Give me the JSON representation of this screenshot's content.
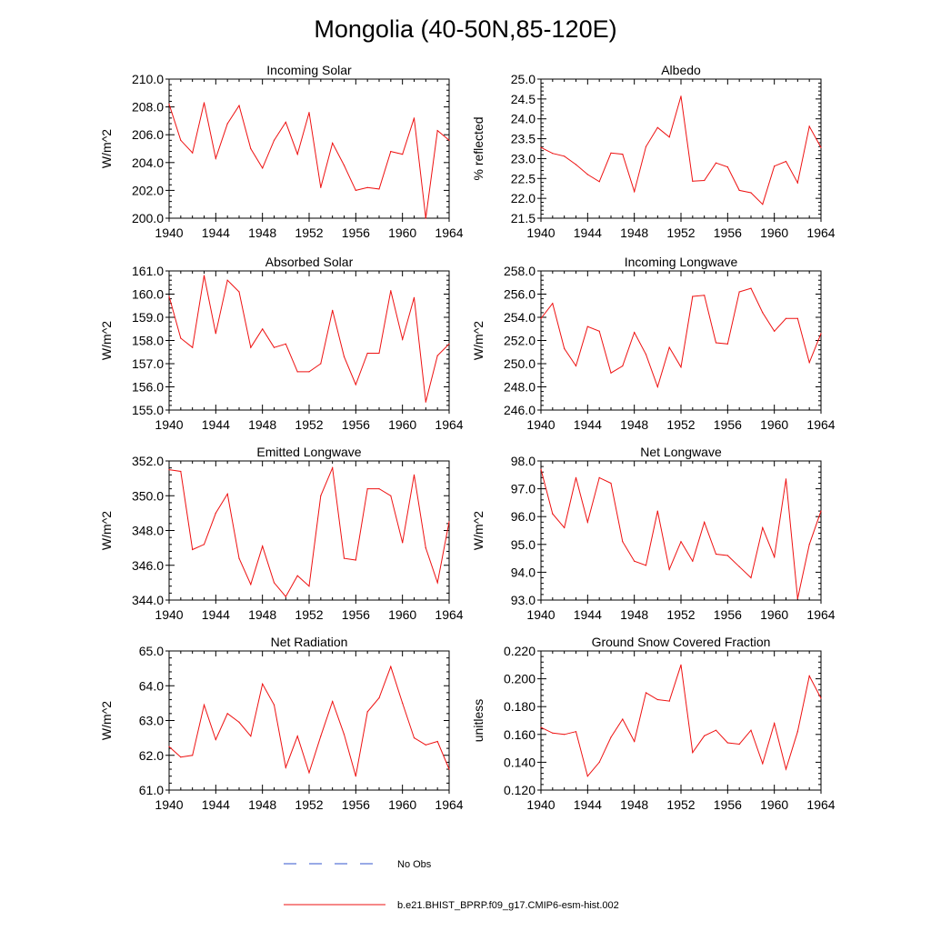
{
  "title": "Mongolia (40-50N,85-120E)",
  "legend": {
    "no_obs_label": "No Obs",
    "no_obs_color": "#3355cc",
    "model_label": "b.e21.BHIST_BPRP.f09_g17.CMIP6-esm-hist.002",
    "model_color": "#ee1111"
  },
  "chart_data": [
    {
      "type": "line",
      "title": "Incoming Solar",
      "xlabel": "",
      "ylabel": "W/m^2",
      "xlim": [
        1940,
        1964
      ],
      "ylim": [
        200.0,
        210.0
      ],
      "ytick_step": 2.0,
      "ydecimals": 1,
      "xticks": [
        1940,
        1944,
        1948,
        1952,
        1956,
        1960,
        1964
      ],
      "x": [
        1940,
        1941,
        1942,
        1943,
        1944,
        1945,
        1946,
        1947,
        1948,
        1949,
        1950,
        1951,
        1952,
        1953,
        1954,
        1955,
        1956,
        1957,
        1958,
        1959,
        1960,
        1961,
        1962,
        1963,
        1964
      ],
      "series": [
        {
          "name": "b.e21.BHIST_BPRP.f09_g17.CMIP6-esm-hist.002",
          "values": [
            208.2,
            205.6,
            204.7,
            208.3,
            204.3,
            206.8,
            208.1,
            205.0,
            203.6,
            205.6,
            206.9,
            204.6,
            207.6,
            202.2,
            205.4,
            203.8,
            202.0,
            202.2,
            202.1,
            204.8,
            204.6,
            207.2,
            200.0,
            206.3,
            205.6
          ]
        }
      ]
    },
    {
      "type": "line",
      "title": "Albedo",
      "xlabel": "",
      "ylabel": "% reflected",
      "xlim": [
        1940,
        1964
      ],
      "ylim": [
        21.5,
        25.0
      ],
      "ytick_step": 0.5,
      "ydecimals": 1,
      "xticks": [
        1940,
        1944,
        1948,
        1952,
        1956,
        1960,
        1964
      ],
      "x": [
        1940,
        1941,
        1942,
        1943,
        1944,
        1945,
        1946,
        1947,
        1948,
        1949,
        1950,
        1951,
        1952,
        1953,
        1954,
        1955,
        1956,
        1957,
        1958,
        1959,
        1960,
        1961,
        1962,
        1963,
        1964
      ],
      "series": [
        {
          "name": "b.e21.BHIST_BPRP.f09_g17.CMIP6-esm-hist.002",
          "values": [
            23.28,
            23.13,
            23.06,
            22.85,
            22.6,
            22.42,
            23.14,
            23.11,
            22.17,
            23.3,
            23.78,
            23.54,
            24.57,
            22.43,
            22.45,
            22.89,
            22.79,
            22.2,
            22.14,
            21.85,
            22.81,
            22.93,
            22.39,
            23.81,
            23.28
          ]
        }
      ]
    },
    {
      "type": "line",
      "title": "Absorbed Solar",
      "xlabel": "",
      "ylabel": "W/m^2",
      "xlim": [
        1940,
        1964
      ],
      "ylim": [
        155.0,
        161.0
      ],
      "ytick_step": 1.0,
      "ydecimals": 1,
      "xticks": [
        1940,
        1944,
        1948,
        1952,
        1956,
        1960,
        1964
      ],
      "x": [
        1940,
        1941,
        1942,
        1943,
        1944,
        1945,
        1946,
        1947,
        1948,
        1949,
        1950,
        1951,
        1952,
        1953,
        1954,
        1955,
        1956,
        1957,
        1958,
        1959,
        1960,
        1961,
        1962,
        1963,
        1964
      ],
      "series": [
        {
          "name": "b.e21.BHIST_BPRP.f09_g17.CMIP6-esm-hist.002",
          "values": [
            159.9,
            158.1,
            157.7,
            160.8,
            158.3,
            160.6,
            160.1,
            157.7,
            158.5,
            157.7,
            157.85,
            156.65,
            156.65,
            157.0,
            159.3,
            157.3,
            156.1,
            157.45,
            157.45,
            160.15,
            158.05,
            159.85,
            155.35,
            157.35,
            157.85
          ]
        }
      ]
    },
    {
      "type": "line",
      "title": "Incoming Longwave",
      "xlabel": "",
      "ylabel": "W/m^2",
      "xlim": [
        1940,
        1964
      ],
      "ylim": [
        246.0,
        258.0
      ],
      "ytick_step": 2.0,
      "ydecimals": 1,
      "xticks": [
        1940,
        1944,
        1948,
        1952,
        1956,
        1960,
        1964
      ],
      "x": [
        1940,
        1941,
        1942,
        1943,
        1944,
        1945,
        1946,
        1947,
        1948,
        1949,
        1950,
        1951,
        1952,
        1953,
        1954,
        1955,
        1956,
        1957,
        1958,
        1959,
        1960,
        1961,
        1962,
        1963,
        1964
      ],
      "series": [
        {
          "name": "b.e21.BHIST_BPRP.f09_g17.CMIP6-esm-hist.002",
          "values": [
            253.9,
            255.2,
            251.3,
            249.8,
            253.2,
            252.8,
            249.2,
            249.8,
            252.7,
            250.8,
            248.0,
            251.4,
            249.7,
            255.8,
            255.9,
            251.8,
            251.7,
            256.2,
            256.5,
            254.4,
            252.8,
            253.9,
            253.9,
            250.1,
            252.6
          ]
        }
      ]
    },
    {
      "type": "line",
      "title": "Emitted Longwave",
      "xlabel": "",
      "ylabel": "W/m^2",
      "xlim": [
        1940,
        1964
      ],
      "ylim": [
        344.0,
        352.0
      ],
      "ytick_step": 2.0,
      "ydecimals": 1,
      "xticks": [
        1940,
        1944,
        1948,
        1952,
        1956,
        1960,
        1964
      ],
      "x": [
        1940,
        1941,
        1942,
        1943,
        1944,
        1945,
        1946,
        1947,
        1948,
        1949,
        1950,
        1951,
        1952,
        1953,
        1954,
        1955,
        1956,
        1957,
        1958,
        1959,
        1960,
        1961,
        1962,
        1963,
        1964
      ],
      "series": [
        {
          "name": "b.e21.BHIST_BPRP.f09_g17.CMIP6-esm-hist.002",
          "values": [
            351.5,
            351.4,
            346.9,
            347.2,
            349.0,
            350.1,
            346.4,
            344.9,
            347.1,
            345.0,
            344.2,
            345.4,
            344.8,
            350.0,
            351.6,
            346.4,
            346.3,
            350.4,
            350.4,
            350.0,
            347.3,
            351.2,
            347.0,
            345.0,
            348.5
          ]
        }
      ]
    },
    {
      "type": "line",
      "title": "Net Longwave",
      "xlabel": "",
      "ylabel": "W/m^2",
      "xlim": [
        1940,
        1964
      ],
      "ylim": [
        93.0,
        98.0
      ],
      "ytick_step": 1.0,
      "ydecimals": 1,
      "xticks": [
        1940,
        1944,
        1948,
        1952,
        1956,
        1960,
        1964
      ],
      "x": [
        1940,
        1941,
        1942,
        1943,
        1944,
        1945,
        1946,
        1947,
        1948,
        1949,
        1950,
        1951,
        1952,
        1953,
        1954,
        1955,
        1956,
        1957,
        1958,
        1959,
        1960,
        1961,
        1962,
        1963,
        1964
      ],
      "series": [
        {
          "name": "b.e21.BHIST_BPRP.f09_g17.CMIP6-esm-hist.002",
          "values": [
            97.7,
            96.1,
            95.6,
            97.4,
            95.8,
            97.4,
            97.2,
            95.1,
            94.4,
            94.25,
            96.2,
            94.1,
            95.1,
            94.4,
            95.8,
            94.65,
            94.6,
            94.2,
            93.8,
            95.6,
            94.55,
            97.35,
            93.05,
            95.0,
            96.2
          ]
        }
      ]
    },
    {
      "type": "line",
      "title": "Net Radiation",
      "xlabel": "",
      "ylabel": "W/m^2",
      "xlim": [
        1940,
        1964
      ],
      "ylim": [
        61.0,
        65.0
      ],
      "ytick_step": 1.0,
      "ydecimals": 1,
      "xticks": [
        1940,
        1944,
        1948,
        1952,
        1956,
        1960,
        1964
      ],
      "x": [
        1940,
        1941,
        1942,
        1943,
        1944,
        1945,
        1946,
        1947,
        1948,
        1949,
        1950,
        1951,
        1952,
        1953,
        1954,
        1955,
        1956,
        1957,
        1958,
        1959,
        1960,
        1961,
        1962,
        1963,
        1964
      ],
      "series": [
        {
          "name": "b.e21.BHIST_BPRP.f09_g17.CMIP6-esm-hist.002",
          "values": [
            62.25,
            61.95,
            62.0,
            63.45,
            62.45,
            63.2,
            62.95,
            62.55,
            64.05,
            63.45,
            61.65,
            62.55,
            61.5,
            62.55,
            63.55,
            62.6,
            61.4,
            63.25,
            63.65,
            64.55,
            63.5,
            62.5,
            62.3,
            62.4,
            61.6
          ]
        }
      ]
    },
    {
      "type": "line",
      "title": "Ground Snow Covered Fraction",
      "xlabel": "",
      "ylabel": "unitless",
      "xlim": [
        1940,
        1964
      ],
      "ylim": [
        0.12,
        0.22
      ],
      "ytick_step": 0.02,
      "ydecimals": 3,
      "xticks": [
        1940,
        1944,
        1948,
        1952,
        1956,
        1960,
        1964
      ],
      "x": [
        1940,
        1941,
        1942,
        1943,
        1944,
        1945,
        1946,
        1947,
        1948,
        1949,
        1950,
        1951,
        1952,
        1953,
        1954,
        1955,
        1956,
        1957,
        1958,
        1959,
        1960,
        1961,
        1962,
        1963,
        1964
      ],
      "series": [
        {
          "name": "b.e21.BHIST_BPRP.f09_g17.CMIP6-esm-hist.002",
          "values": [
            0.165,
            0.161,
            0.16,
            0.162,
            0.13,
            0.14,
            0.158,
            0.171,
            0.155,
            0.19,
            0.185,
            0.184,
            0.21,
            0.147,
            0.159,
            0.163,
            0.154,
            0.153,
            0.163,
            0.139,
            0.168,
            0.135,
            0.162,
            0.202,
            0.186
          ]
        }
      ]
    }
  ]
}
